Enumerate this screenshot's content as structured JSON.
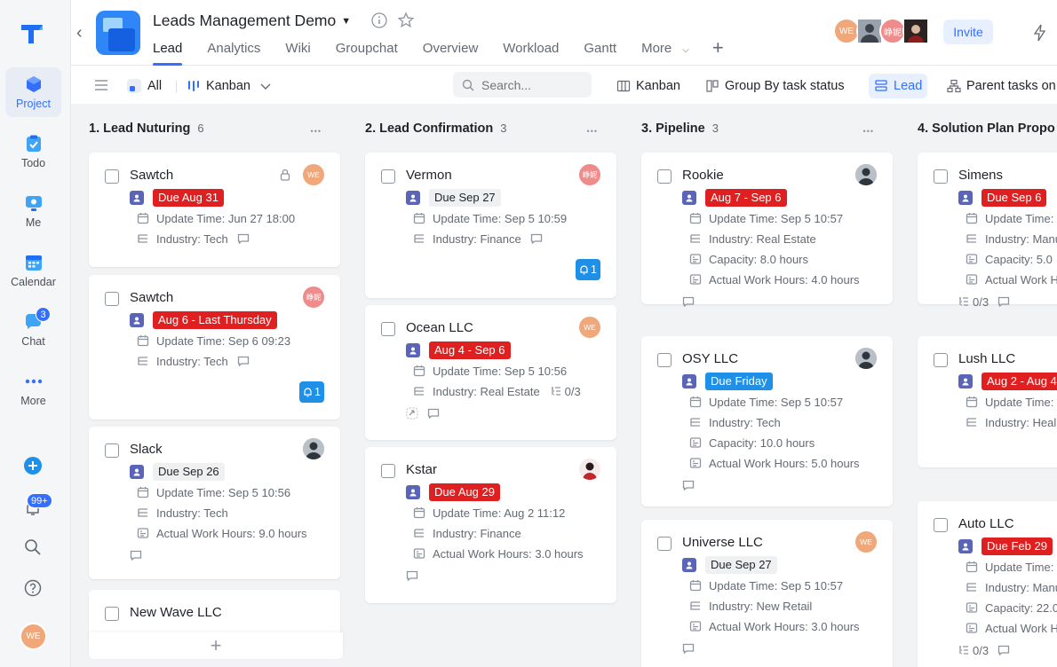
{
  "rail": {
    "items": [
      {
        "label": "Project",
        "icon": "project-cube-icon",
        "active": true
      },
      {
        "label": "Todo",
        "icon": "todo-check-icon"
      },
      {
        "label": "Me",
        "icon": "me-monitor-icon"
      },
      {
        "label": "Calendar",
        "icon": "calendar-icon"
      },
      {
        "label": "Chat",
        "icon": "chat-bubble-icon",
        "badge": "3"
      },
      {
        "label": "More",
        "icon": "more-dots-icon"
      }
    ],
    "notif_badge": "99+",
    "user_initials": "WE"
  },
  "header": {
    "title": "Leads Management Demo",
    "tabs": [
      "Lead",
      "Analytics",
      "Wiki",
      "Groupchat",
      "Overview",
      "Workload",
      "Gantt",
      "More"
    ],
    "active_tab": "Lead",
    "avatars": [
      "WE",
      "",
      "峥妮",
      ""
    ],
    "invite": "Invite"
  },
  "toolbar": {
    "all": "All",
    "view": "Kanban",
    "search_placeholder": "Search...",
    "kanban": "Kanban",
    "group_by": "Group By task status",
    "lead": "Lead",
    "parent_tasks": "Parent tasks on"
  },
  "colors": {
    "accent": "#3370ff",
    "due_red": "#e02020",
    "due_blue": "#1e90e8",
    "avatar_orange": "#f0a77a",
    "avatar_pink": "#f08b8b"
  },
  "columns": [
    {
      "title": "1. Lead Nuturing",
      "count": "6",
      "cards": [
        {
          "title": "Sawtch",
          "lock": true,
          "avatar": "WE",
          "due": "Due Aug 31",
          "due_style": "red",
          "fields": [
            "Update Time: Jun 27 18:00",
            "Industry: Tech"
          ]
        },
        {
          "title": "Sawtch",
          "avatar": "峥妮",
          "due": "Aug 6 - Last Thursday",
          "due_style": "red",
          "fields": [
            "Update Time: Sep 6 09:23",
            "Industry: Tech"
          ],
          "reminder": "1"
        },
        {
          "title": "Slack",
          "avatar": "",
          "due": "Due Sep 26",
          "due_style": "gray",
          "fields": [
            "Update Time: Sep 5 10:56",
            "Industry: Tech",
            "Actual Work Hours: 9.0 hours"
          ]
        },
        {
          "title": "New Wave LLC"
        }
      ]
    },
    {
      "title": "2. Lead Confirmation",
      "count": "3",
      "cards": [
        {
          "title": "Vermon",
          "avatar": "峥妮",
          "due": "Due Sep 27",
          "due_style": "gray",
          "fields": [
            "Update Time: Sep 5 10:59",
            "Industry: Finance"
          ],
          "reminder": "1"
        },
        {
          "title": "Ocean LLC",
          "avatar": "WE",
          "due": "Aug 4 - Sep 6",
          "due_style": "red",
          "fields": [
            "Update Time: Sep 5 10:56",
            "Industry: Real Estate"
          ],
          "subtasks": "0/3"
        },
        {
          "title": "Kstar",
          "avatar": "",
          "due": "Due Aug 29",
          "due_style": "red",
          "fields": [
            "Update Time: Aug 2 11:12",
            "Industry: Finance",
            "Actual Work Hours: 3.0 hours"
          ]
        }
      ]
    },
    {
      "title": "3. Pipeline",
      "count": "3",
      "cards": [
        {
          "title": "Rookie",
          "avatar": "",
          "due": "Aug 7 - Sep 6",
          "due_style": "red",
          "fields": [
            "Update Time: Sep 5 10:57",
            "Industry: Real Estate",
            "Capacity: 8.0 hours",
            "Actual Work Hours: 4.0 hours"
          ]
        },
        {
          "title": "OSY LLC",
          "avatar": "",
          "due": "Due Friday",
          "due_style": "blue",
          "fields": [
            "Update Time: Sep 5 10:57",
            "Industry: Tech",
            "Capacity: 10.0 hours",
            "Actual Work Hours: 5.0 hours"
          ]
        },
        {
          "title": "Universe LLC",
          "avatar": "WE",
          "due": "Due Sep 27",
          "due_style": "gray",
          "fields": [
            "Update Time: Sep 5 10:57",
            "Industry: New Retail",
            "Actual Work Hours: 3.0 hours"
          ]
        }
      ]
    },
    {
      "title": "4. Solution Plan Propo",
      "count": "",
      "cards": [
        {
          "title": "Simens",
          "due": "Due Sep 6",
          "due_style": "red",
          "fields": [
            "Update Time:",
            "Industry: Manu",
            "Capacity: 5.0",
            "Actual Work H"
          ],
          "subtasks": "0/3"
        },
        {
          "title": "Lush LLC",
          "due": "Aug 2 - Aug 4",
          "due_style": "red",
          "fields": [
            "Update Time:",
            "Industry: Heal"
          ]
        },
        {
          "title": "Auto LLC",
          "due": "Due Feb 29",
          "due_style": "red",
          "fields": [
            "Update Time:",
            "Industry: Manu",
            "Capacity: 22.0",
            "Actual Work H"
          ],
          "subtasks": "0/3"
        }
      ]
    }
  ]
}
